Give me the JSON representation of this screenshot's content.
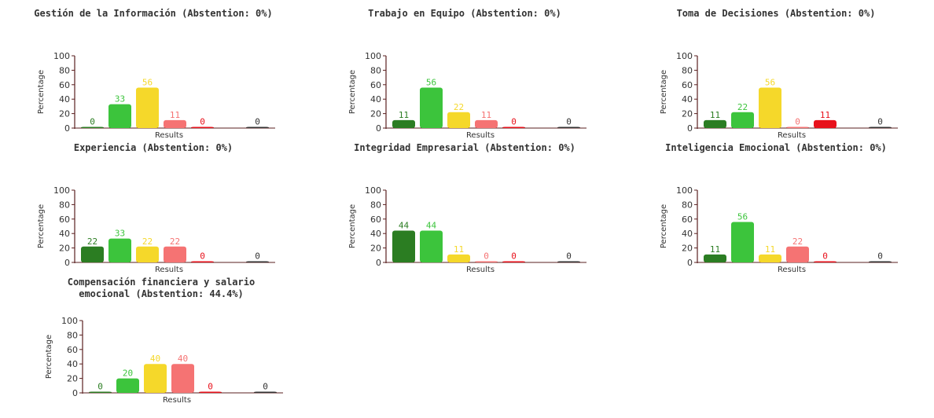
{
  "colors": {
    "very_high": "#2b7d22",
    "high": "#3cc43c",
    "medium": "#f5d82a",
    "low": "#f57373",
    "very_low": "#e8111b",
    "none": "#333333",
    "axis": "#5a1f1f"
  },
  "chart_data": [
    {
      "type": "bar",
      "title": "Gestión de la Información (Abstention: 0%)",
      "xlabel": "Results",
      "ylabel": "Percentage",
      "ylim": [
        0,
        100
      ],
      "yticks": [
        "0",
        "20",
        "40",
        "60",
        "80",
        "100"
      ],
      "values": [
        0,
        33,
        56,
        11,
        0,
        0
      ],
      "labels": [
        "0",
        "33",
        "56",
        "11",
        "0",
        "0"
      ]
    },
    {
      "type": "bar",
      "title": "Trabajo en Equipo (Abstention: 0%)",
      "xlabel": "Results",
      "ylabel": "Percentage",
      "ylim": [
        0,
        100
      ],
      "yticks": [
        "0",
        "20",
        "40",
        "60",
        "80",
        "100"
      ],
      "values": [
        11,
        56,
        22,
        11,
        0,
        0
      ],
      "labels": [
        "11",
        "56",
        "22",
        "11",
        "0",
        "0"
      ]
    },
    {
      "type": "bar",
      "title": "Toma de Decisiones (Abstention: 0%)",
      "xlabel": "Results",
      "ylabel": "Percentage",
      "ylim": [
        0,
        100
      ],
      "yticks": [
        "0",
        "20",
        "40",
        "60",
        "80",
        "100"
      ],
      "values": [
        11,
        22,
        56,
        0,
        11,
        0
      ],
      "labels": [
        "11",
        "22",
        "56",
        "0",
        "11",
        "0"
      ]
    },
    {
      "type": "bar",
      "title": "Experiencia (Abstention: 0%)",
      "xlabel": "Results",
      "ylabel": "Percentage",
      "ylim": [
        0,
        100
      ],
      "yticks": [
        "0",
        "20",
        "40",
        "60",
        "80",
        "100"
      ],
      "values": [
        22,
        33,
        22,
        22,
        0,
        0
      ],
      "labels": [
        "22",
        "33",
        "22",
        "22",
        "0",
        "0"
      ]
    },
    {
      "type": "bar",
      "title": "Integridad Empresarial (Abstention: 0%)",
      "xlabel": "Results",
      "ylabel": "Percentage",
      "ylim": [
        0,
        100
      ],
      "yticks": [
        "0",
        "20",
        "40",
        "60",
        "80",
        "100"
      ],
      "values": [
        44,
        44,
        11,
        0,
        0,
        0
      ],
      "labels": [
        "44",
        "44",
        "11",
        "0",
        "0",
        "0"
      ]
    },
    {
      "type": "bar",
      "title": "Inteligencia Emocional (Abstention: 0%)",
      "xlabel": "Results",
      "ylabel": "Percentage",
      "ylim": [
        0,
        100
      ],
      "yticks": [
        "0",
        "20",
        "40",
        "60",
        "80",
        "100"
      ],
      "values": [
        11,
        56,
        11,
        22,
        0,
        0
      ],
      "labels": [
        "11",
        "56",
        "11",
        "22",
        "0",
        "0"
      ]
    },
    {
      "type": "bar",
      "title": "Compensación financiera y salario\nemocional (Abstention: 44.4%)",
      "xlabel": "Results",
      "ylabel": "Percentage",
      "ylim": [
        0,
        100
      ],
      "yticks": [
        "0",
        "20",
        "40",
        "60",
        "80",
        "100"
      ],
      "values": [
        0,
        20,
        40,
        40,
        0,
        0
      ],
      "labels": [
        "0",
        "20",
        "40",
        "40",
        "0",
        "0"
      ]
    }
  ]
}
